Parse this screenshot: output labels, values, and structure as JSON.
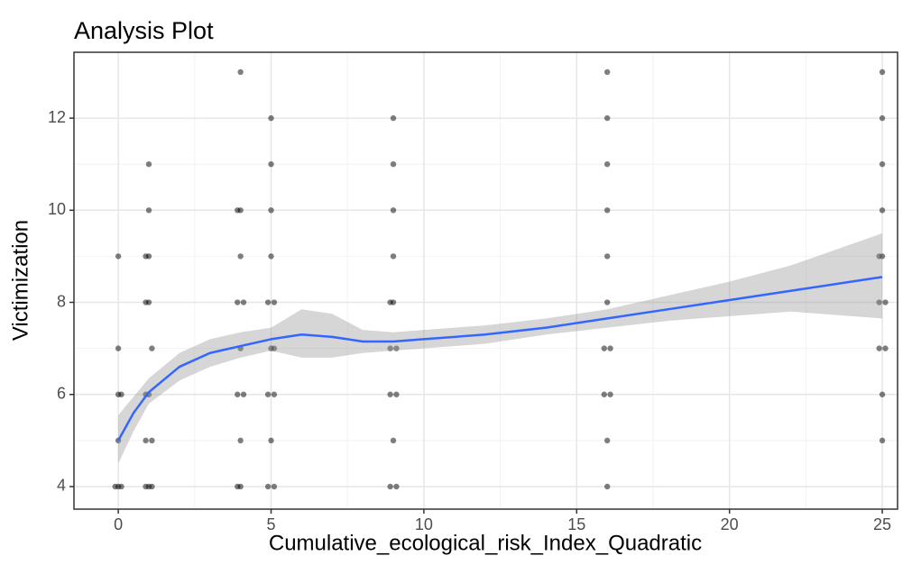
{
  "chart_data": {
    "type": "scatter",
    "title": "Analysis Plot",
    "xlabel": "Cumulative_ecological_risk_Index_Quadratic",
    "ylabel": "Victimization",
    "xlim": [
      -1.45,
      25.5
    ],
    "ylim": [
      3.51,
      13.43
    ],
    "xticks": [
      0,
      5,
      10,
      15,
      20,
      25
    ],
    "yticks": [
      4,
      6,
      8,
      10,
      12
    ],
    "grid": true,
    "points": {
      "color": "#000000",
      "x": [
        0,
        -0.1,
        0.1,
        0,
        0,
        0.1,
        0,
        0,
        0.9,
        1.1,
        1,
        0.9,
        1.1,
        0.9,
        1,
        1.1,
        1,
        0.9,
        1,
        0.9,
        1,
        1,
        4,
        3.9,
        4,
        3.9,
        4.1,
        4,
        3.9,
        4.1,
        4,
        4,
        3.9,
        4,
        4.9,
        5.1,
        5,
        4.9,
        5.1,
        5,
        5.1,
        4.9,
        5.1,
        5,
        5,
        5,
        5,
        8.9,
        9.1,
        9,
        8.9,
        9.1,
        8.9,
        9.1,
        9,
        8.9,
        9,
        9,
        9,
        9,
        16,
        16,
        15.9,
        16.1,
        15.9,
        16.1,
        16,
        16,
        16,
        16,
        16,
        16,
        25,
        25,
        24.9,
        25.1,
        24.9,
        25.1,
        25,
        24.9,
        25,
        25,
        25,
        25
      ],
      "y": [
        4,
        4,
        4,
        5,
        6,
        6,
        7,
        9,
        4,
        4,
        4,
        5,
        5,
        6,
        6,
        7,
        8,
        8,
        9,
        9,
        10,
        11,
        4,
        4,
        5,
        6,
        6,
        7,
        8,
        8,
        9,
        10,
        10,
        13,
        4,
        4,
        5,
        6,
        6,
        7,
        7,
        8,
        8,
        9,
        10,
        11,
        12,
        4,
        4,
        5,
        6,
        6,
        7,
        7,
        8,
        8,
        9,
        10,
        11,
        12,
        4,
        5,
        6,
        6,
        7,
        7,
        8,
        9,
        10,
        11,
        12,
        13,
        5,
        6,
        7,
        7,
        8,
        8,
        9,
        9,
        10,
        11,
        12,
        13
      ]
    },
    "smooth": {
      "color": "#3366ff",
      "band_color": "#999999",
      "x": [
        0,
        0.5,
        1,
        2,
        3,
        4,
        5,
        6,
        7,
        8,
        9,
        10,
        12,
        14,
        16,
        18,
        20,
        22,
        25
      ],
      "y": [
        5.0,
        5.6,
        6.05,
        6.6,
        6.9,
        7.05,
        7.2,
        7.3,
        7.25,
        7.15,
        7.15,
        7.2,
        7.3,
        7.45,
        7.65,
        7.85,
        8.05,
        8.25,
        8.55
      ],
      "lower": [
        4.5,
        5.2,
        5.8,
        6.3,
        6.6,
        6.8,
        6.95,
        6.8,
        6.8,
        6.9,
        6.95,
        7.0,
        7.1,
        7.3,
        7.45,
        7.6,
        7.7,
        7.8,
        7.65
      ],
      "upper": [
        5.55,
        5.95,
        6.35,
        6.9,
        7.2,
        7.35,
        7.45,
        7.85,
        7.75,
        7.4,
        7.35,
        7.4,
        7.5,
        7.65,
        7.85,
        8.15,
        8.45,
        8.8,
        9.5
      ]
    }
  }
}
